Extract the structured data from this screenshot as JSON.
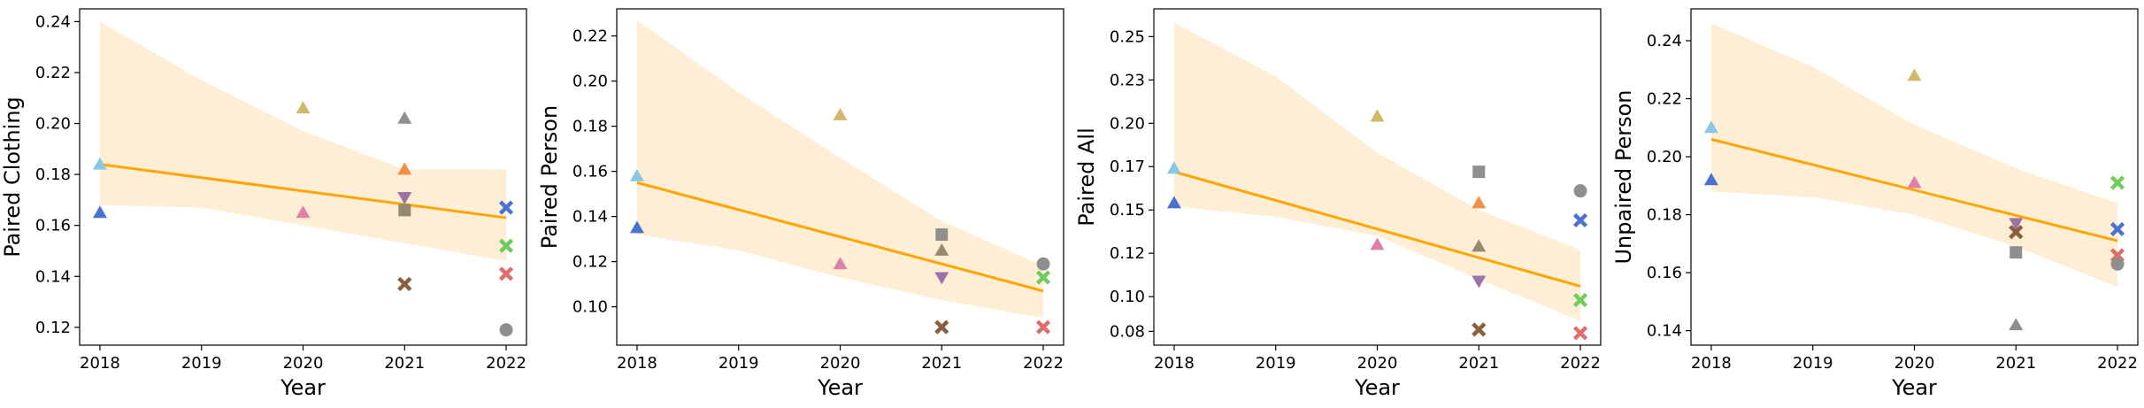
{
  "colors": {
    "trend_line": "#ffa500",
    "confidence_band": "#ffeed6",
    "blue": "#4c72d0",
    "light_blue": "#8ac7e0",
    "orange": "#f28e47",
    "pink": "#e07fa7",
    "tan": "#d2b86a",
    "gray": "#8f8f8f",
    "brown": "#8b5e3c",
    "olive": "#948a6e",
    "purple": "#9d72a9",
    "red": "#e06c6c",
    "green": "#70cc5c"
  },
  "chart_data": [
    {
      "type": "scatter",
      "xlabel": "Year",
      "ylabel": "Paired Clothing",
      "xlim": [
        2017.8,
        2022.2
      ],
      "ylim": [
        0.113,
        0.245
      ],
      "x_ticks": [
        "2018",
        "2019",
        "2020",
        "2021",
        "2022"
      ],
      "y_ticks": [
        "0.12",
        "0.14",
        "0.16",
        "0.18",
        "0.20",
        "0.22",
        "0.24"
      ],
      "trend": {
        "x": [
          2018,
          2022
        ],
        "y": [
          0.184,
          0.163
        ]
      },
      "band": {
        "x": [
          2018,
          2019,
          2020,
          2021,
          2022
        ],
        "upper": [
          0.24,
          0.217,
          0.197,
          0.182,
          0.182
        ],
        "lower": [
          0.168,
          0.167,
          0.16,
          0.153,
          0.146
        ]
      },
      "points": [
        {
          "x": 2018,
          "y": 0.165,
          "marker": "triangle-up",
          "color": "blue"
        },
        {
          "x": 2018,
          "y": 0.184,
          "marker": "triangle-up",
          "color": "light_blue"
        },
        {
          "x": 2020,
          "y": 0.206,
          "marker": "triangle-up",
          "color": "tan"
        },
        {
          "x": 2020,
          "y": 0.165,
          "marker": "triangle-up",
          "color": "pink"
        },
        {
          "x": 2021,
          "y": 0.202,
          "marker": "triangle-up",
          "color": "gray"
        },
        {
          "x": 2021,
          "y": 0.182,
          "marker": "triangle-up",
          "color": "orange"
        },
        {
          "x": 2021,
          "y": 0.171,
          "marker": "triangle-down",
          "color": "purple"
        },
        {
          "x": 2021,
          "y": 0.166,
          "marker": "square",
          "color": "olive"
        },
        {
          "x": 2021,
          "y": 0.137,
          "marker": "x",
          "color": "brown"
        },
        {
          "x": 2022,
          "y": 0.167,
          "marker": "x",
          "color": "blue"
        },
        {
          "x": 2022,
          "y": 0.152,
          "marker": "x",
          "color": "green"
        },
        {
          "x": 2022,
          "y": 0.141,
          "marker": "x",
          "color": "red"
        },
        {
          "x": 2022,
          "y": 0.119,
          "marker": "circle",
          "color": "gray"
        }
      ]
    },
    {
      "type": "scatter",
      "xlabel": "Year",
      "ylabel": "Paired Person",
      "xlim": [
        2017.8,
        2022.2
      ],
      "ylim": [
        0.083,
        0.232
      ],
      "x_ticks": [
        "2018",
        "2019",
        "2020",
        "2021",
        "2022"
      ],
      "y_ticks": [
        "0.10",
        "0.12",
        "0.14",
        "0.16",
        "0.18",
        "0.20",
        "0.22"
      ],
      "trend": {
        "x": [
          2018,
          2022
        ],
        "y": [
          0.155,
          0.107
        ]
      },
      "band": {
        "x": [
          2018,
          2019,
          2020,
          2021,
          2022
        ],
        "upper": [
          0.227,
          0.195,
          0.166,
          0.138,
          0.118
        ],
        "lower": [
          0.132,
          0.125,
          0.113,
          0.103,
          0.095
        ]
      },
      "points": [
        {
          "x": 2018,
          "y": 0.135,
          "marker": "triangle-up",
          "color": "blue"
        },
        {
          "x": 2018,
          "y": 0.158,
          "marker": "triangle-up",
          "color": "light_blue"
        },
        {
          "x": 2020,
          "y": 0.185,
          "marker": "triangle-up",
          "color": "tan"
        },
        {
          "x": 2020,
          "y": 0.119,
          "marker": "triangle-up",
          "color": "pink"
        },
        {
          "x": 2021,
          "y": 0.132,
          "marker": "square",
          "color": "gray"
        },
        {
          "x": 2021,
          "y": 0.125,
          "marker": "triangle-up",
          "color": "olive"
        },
        {
          "x": 2021,
          "y": 0.113,
          "marker": "triangle-down",
          "color": "purple"
        },
        {
          "x": 2021,
          "y": 0.091,
          "marker": "x",
          "color": "brown"
        },
        {
          "x": 2022,
          "y": 0.119,
          "marker": "circle",
          "color": "gray"
        },
        {
          "x": 2022,
          "y": 0.113,
          "marker": "x",
          "color": "green"
        },
        {
          "x": 2022,
          "y": 0.091,
          "marker": "x",
          "color": "red"
        }
      ]
    },
    {
      "type": "scatter",
      "xlabel": "Year",
      "ylabel": "Paired All",
      "xlim": [
        2017.8,
        2022.2
      ],
      "ylim": [
        0.072,
        0.266
      ],
      "x_ticks": [
        "2018",
        "2019",
        "2020",
        "2021",
        "2022"
      ],
      "y_ticks": [
        "0.08",
        "0.10",
        "0.12",
        "0.15",
        "0.17",
        "0.20",
        "0.23",
        "0.25"
      ],
      "y_tick_values": [
        0.08,
        0.1,
        0.125,
        0.15,
        0.175,
        0.2,
        0.225,
        0.25
      ],
      "trend": {
        "x": [
          2018,
          2022
        ],
        "y": [
          0.172,
          0.106
        ]
      },
      "band": {
        "x": [
          2018,
          2019,
          2020,
          2021,
          2022
        ],
        "upper": [
          0.258,
          0.227,
          0.183,
          0.15,
          0.127
        ],
        "lower": [
          0.152,
          0.146,
          0.135,
          0.11,
          0.086
        ]
      },
      "points": [
        {
          "x": 2018,
          "y": 0.154,
          "marker": "triangle-up",
          "color": "blue"
        },
        {
          "x": 2018,
          "y": 0.174,
          "marker": "triangle-up",
          "color": "light_blue"
        },
        {
          "x": 2020,
          "y": 0.204,
          "marker": "triangle-up",
          "color": "tan"
        },
        {
          "x": 2020,
          "y": 0.13,
          "marker": "triangle-up",
          "color": "pink"
        },
        {
          "x": 2021,
          "y": 0.172,
          "marker": "square",
          "color": "gray"
        },
        {
          "x": 2021,
          "y": 0.154,
          "marker": "triangle-up",
          "color": "orange"
        },
        {
          "x": 2021,
          "y": 0.129,
          "marker": "triangle-up",
          "color": "olive"
        },
        {
          "x": 2021,
          "y": 0.109,
          "marker": "triangle-down",
          "color": "purple"
        },
        {
          "x": 2021,
          "y": 0.081,
          "marker": "x",
          "color": "brown"
        },
        {
          "x": 2022,
          "y": 0.161,
          "marker": "circle",
          "color": "gray"
        },
        {
          "x": 2022,
          "y": 0.144,
          "marker": "x",
          "color": "blue"
        },
        {
          "x": 2022,
          "y": 0.098,
          "marker": "x",
          "color": "green"
        },
        {
          "x": 2022,
          "y": 0.079,
          "marker": "x",
          "color": "red"
        }
      ]
    },
    {
      "type": "scatter",
      "xlabel": "Year",
      "ylabel": "Unpaired Person",
      "xlim": [
        2017.8,
        2022.2
      ],
      "ylim": [
        0.135,
        0.251
      ],
      "x_ticks": [
        "2018",
        "2019",
        "2020",
        "2021",
        "2022"
      ],
      "y_ticks": [
        "0.14",
        "0.16",
        "0.18",
        "0.20",
        "0.22",
        "0.24"
      ],
      "trend": {
        "x": [
          2018,
          2022
        ],
        "y": [
          0.206,
          0.171
        ]
      },
      "band": {
        "x": [
          2018,
          2019,
          2020,
          2021,
          2022
        ],
        "upper": [
          0.246,
          0.231,
          0.211,
          0.196,
          0.184
        ],
        "lower": [
          0.188,
          0.186,
          0.18,
          0.169,
          0.155
        ]
      },
      "points": [
        {
          "x": 2018,
          "y": 0.192,
          "marker": "triangle-up",
          "color": "blue"
        },
        {
          "x": 2018,
          "y": 0.21,
          "marker": "triangle-up",
          "color": "light_blue"
        },
        {
          "x": 2020,
          "y": 0.228,
          "marker": "triangle-up",
          "color": "tan"
        },
        {
          "x": 2020,
          "y": 0.191,
          "marker": "triangle-up",
          "color": "pink"
        },
        {
          "x": 2021,
          "y": 0.177,
          "marker": "triangle-down",
          "color": "purple"
        },
        {
          "x": 2021,
          "y": 0.174,
          "marker": "x",
          "color": "brown"
        },
        {
          "x": 2021,
          "y": 0.167,
          "marker": "square",
          "color": "gray"
        },
        {
          "x": 2021,
          "y": 0.142,
          "marker": "triangle-up",
          "color": "gray"
        },
        {
          "x": 2022,
          "y": 0.191,
          "marker": "x",
          "color": "green"
        },
        {
          "x": 2022,
          "y": 0.175,
          "marker": "x",
          "color": "blue"
        },
        {
          "x": 2022,
          "y": 0.166,
          "marker": "x",
          "color": "red"
        },
        {
          "x": 2022,
          "y": 0.163,
          "marker": "circle",
          "color": "gray"
        }
      ]
    }
  ]
}
